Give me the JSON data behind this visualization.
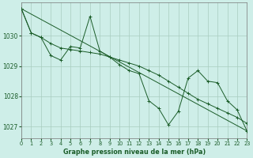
{
  "title": "Graphe pression niveau de la mer (hPa)",
  "background_color": "#ceeee8",
  "grid_color": "#a8ccbf",
  "line_color": "#1a5c28",
  "xlim": [
    0,
    23
  ],
  "ylim": [
    1026.6,
    1031.1
  ],
  "yticks": [
    1027,
    1028,
    1029,
    1030
  ],
  "xticks": [
    0,
    1,
    2,
    3,
    4,
    5,
    6,
    7,
    8,
    9,
    10,
    11,
    12,
    13,
    14,
    15,
    16,
    17,
    18,
    19,
    20,
    21,
    22,
    23
  ],
  "series1": {
    "x": [
      0,
      1,
      2,
      3,
      4,
      5,
      6,
      7,
      8,
      9,
      10,
      11,
      12,
      13,
      14,
      15,
      16,
      17,
      18,
      19,
      20,
      21,
      22,
      23
    ],
    "y": [
      1030.9,
      1030.1,
      1029.95,
      1029.35,
      1029.2,
      1029.65,
      1029.6,
      1030.65,
      1029.5,
      1029.3,
      1029.05,
      1028.85,
      1028.75,
      1027.85,
      1027.6,
      1027.05,
      1027.5,
      1028.6,
      1028.85,
      1028.5,
      1028.45,
      1027.85,
      1027.55,
      1026.85
    ]
  },
  "series2": {
    "x": [
      0,
      1,
      2,
      3,
      4,
      5,
      6,
      7,
      8,
      9,
      10,
      11,
      12,
      13,
      14,
      15,
      16,
      17,
      18,
      19,
      20,
      21,
      22,
      23
    ],
    "y": [
      1030.9,
      1030.1,
      1029.95,
      1029.75,
      1029.6,
      1029.55,
      1029.5,
      1029.45,
      1029.4,
      1029.3,
      1029.2,
      1029.1,
      1029.0,
      1028.85,
      1028.7,
      1028.5,
      1028.3,
      1028.1,
      1027.9,
      1027.75,
      1027.6,
      1027.45,
      1027.3,
      1027.1
    ]
  },
  "series3": {
    "x": [
      0,
      23
    ],
    "y": [
      1030.9,
      1026.85
    ]
  }
}
